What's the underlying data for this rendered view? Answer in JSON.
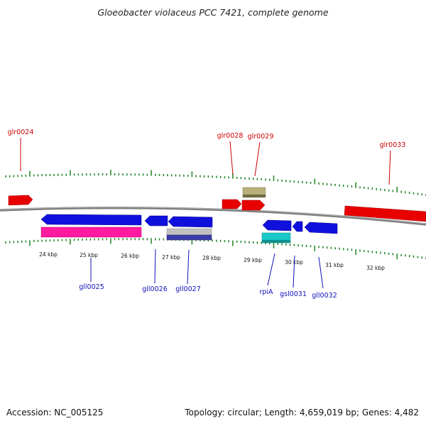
{
  "title": "Gloeobacter violaceus PCC 7421, complete genome",
  "footer": {
    "accession": "Accession: NC_005125",
    "summary": "Topology: circular; Length: 4,659,019 bp; Genes: 4,482"
  },
  "colors": {
    "forward": "#e80000",
    "reverse": "#1010dd",
    "label_forward": "#cc0000",
    "label_reverse": "#1010bb",
    "ticks": "#2a8a2a",
    "backbone": "#808080",
    "pink": "#ff1aa0",
    "olive": "#b8b078",
    "cyan": "#18c8c8",
    "silver": "#c0c0c0",
    "navy": "#3a3aa8"
  },
  "kbp_labels": [
    "24 kbp",
    "25 kbp",
    "26 kbp",
    "27 kbp",
    "28 kbp",
    "29 kbp",
    "30 kbp",
    "31 kbp",
    "32 kbp"
  ],
  "labels_forward": [
    "glr0024",
    "glr0028",
    "glr0029",
    "glr0033"
  ],
  "labels_reverse": [
    "gll0025",
    "gll0026",
    "gll0027",
    "rpiA",
    "gsl0031",
    "gll0032"
  ]
}
